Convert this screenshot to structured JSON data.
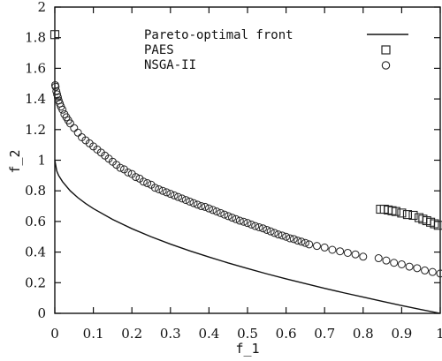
{
  "chart_data": {
    "type": "scatter",
    "xlabel": "f_1",
    "ylabel": "f_2",
    "xlim": [
      0,
      1
    ],
    "ylim": [
      0,
      2
    ],
    "xticks": [
      "0",
      "0.1",
      "0.2",
      "0.3",
      "0.4",
      "0.5",
      "0.6",
      "0.7",
      "0.8",
      "0.9",
      "1"
    ],
    "yticks": [
      "0",
      "0.2",
      "0.4",
      "0.6",
      "0.8",
      "1",
      "1.2",
      "1.4",
      "1.6",
      "1.8",
      "2"
    ],
    "legend_position": "top-right",
    "grid": false,
    "series": [
      {
        "name": "Pareto-optimal front",
        "kind": "line",
        "color": "#111111",
        "x": [
          0,
          0.005,
          0.01,
          0.02,
          0.04,
          0.06,
          0.08,
          0.1,
          0.15,
          0.2,
          0.25,
          0.3,
          0.35,
          0.4,
          0.45,
          0.5,
          0.55,
          0.6,
          0.65,
          0.7,
          0.75,
          0.8,
          0.85,
          0.9,
          0.95,
          1
        ],
        "y": [
          1,
          0.93,
          0.9,
          0.86,
          0.8,
          0.755,
          0.717,
          0.684,
          0.613,
          0.553,
          0.5,
          0.452,
          0.408,
          0.368,
          0.329,
          0.293,
          0.258,
          0.225,
          0.194,
          0.163,
          0.134,
          0.106,
          0.078,
          0.051,
          0.025,
          0
        ]
      },
      {
        "name": "PAES",
        "kind": "square-marker",
        "color": "#222222",
        "x": [
          0,
          0.845,
          0.855,
          0.865,
          0.875,
          0.885,
          0.9,
          0.915,
          0.93,
          0.945,
          0.955,
          0.965,
          0.975,
          0.985,
          0.995
        ],
        "y": [
          1.82,
          0.68,
          0.68,
          0.675,
          0.67,
          0.665,
          0.655,
          0.645,
          0.64,
          0.625,
          0.615,
          0.605,
          0.595,
          0.585,
          0.575
        ]
      },
      {
        "name": "NSGA-II",
        "kind": "circle-marker",
        "color": "#222222",
        "x": [
          0.001,
          0.002,
          0.004,
          0.006,
          0.008,
          0.01,
          0.013,
          0.016,
          0.02,
          0.025,
          0.03,
          0.035,
          0.04,
          0.05,
          0.06,
          0.07,
          0.08,
          0.09,
          0.1,
          0.11,
          0.12,
          0.13,
          0.14,
          0.15,
          0.16,
          0.17,
          0.18,
          0.19,
          0.2,
          0.21,
          0.22,
          0.23,
          0.24,
          0.25,
          0.26,
          0.27,
          0.28,
          0.29,
          0.3,
          0.31,
          0.32,
          0.33,
          0.34,
          0.35,
          0.36,
          0.37,
          0.38,
          0.39,
          0.4,
          0.41,
          0.42,
          0.43,
          0.44,
          0.45,
          0.46,
          0.47,
          0.48,
          0.49,
          0.5,
          0.51,
          0.52,
          0.53,
          0.54,
          0.55,
          0.56,
          0.57,
          0.58,
          0.59,
          0.6,
          0.61,
          0.62,
          0.63,
          0.64,
          0.65,
          0.66,
          0.68,
          0.7,
          0.72,
          0.74,
          0.76,
          0.78,
          0.8,
          0.84,
          0.86,
          0.88,
          0.9,
          0.92,
          0.94,
          0.96,
          0.98,
          1.0
        ],
        "y": [
          1.49,
          1.48,
          1.45,
          1.43,
          1.41,
          1.39,
          1.37,
          1.35,
          1.33,
          1.3,
          1.28,
          1.26,
          1.24,
          1.21,
          1.18,
          1.15,
          1.13,
          1.11,
          1.09,
          1.07,
          1.05,
          1.03,
          1.01,
          0.99,
          0.97,
          0.95,
          0.94,
          0.92,
          0.91,
          0.89,
          0.88,
          0.86,
          0.85,
          0.84,
          0.82,
          0.81,
          0.8,
          0.79,
          0.78,
          0.77,
          0.76,
          0.75,
          0.74,
          0.73,
          0.72,
          0.71,
          0.7,
          0.695,
          0.685,
          0.675,
          0.665,
          0.655,
          0.645,
          0.635,
          0.625,
          0.615,
          0.605,
          0.598,
          0.59,
          0.58,
          0.57,
          0.562,
          0.555,
          0.545,
          0.535,
          0.525,
          0.515,
          0.508,
          0.5,
          0.49,
          0.485,
          0.475,
          0.468,
          0.46,
          0.45,
          0.44,
          0.43,
          0.415,
          0.405,
          0.395,
          0.385,
          0.37,
          0.36,
          0.345,
          0.33,
          0.32,
          0.305,
          0.295,
          0.28,
          0.27,
          0.26
        ]
      }
    ]
  }
}
